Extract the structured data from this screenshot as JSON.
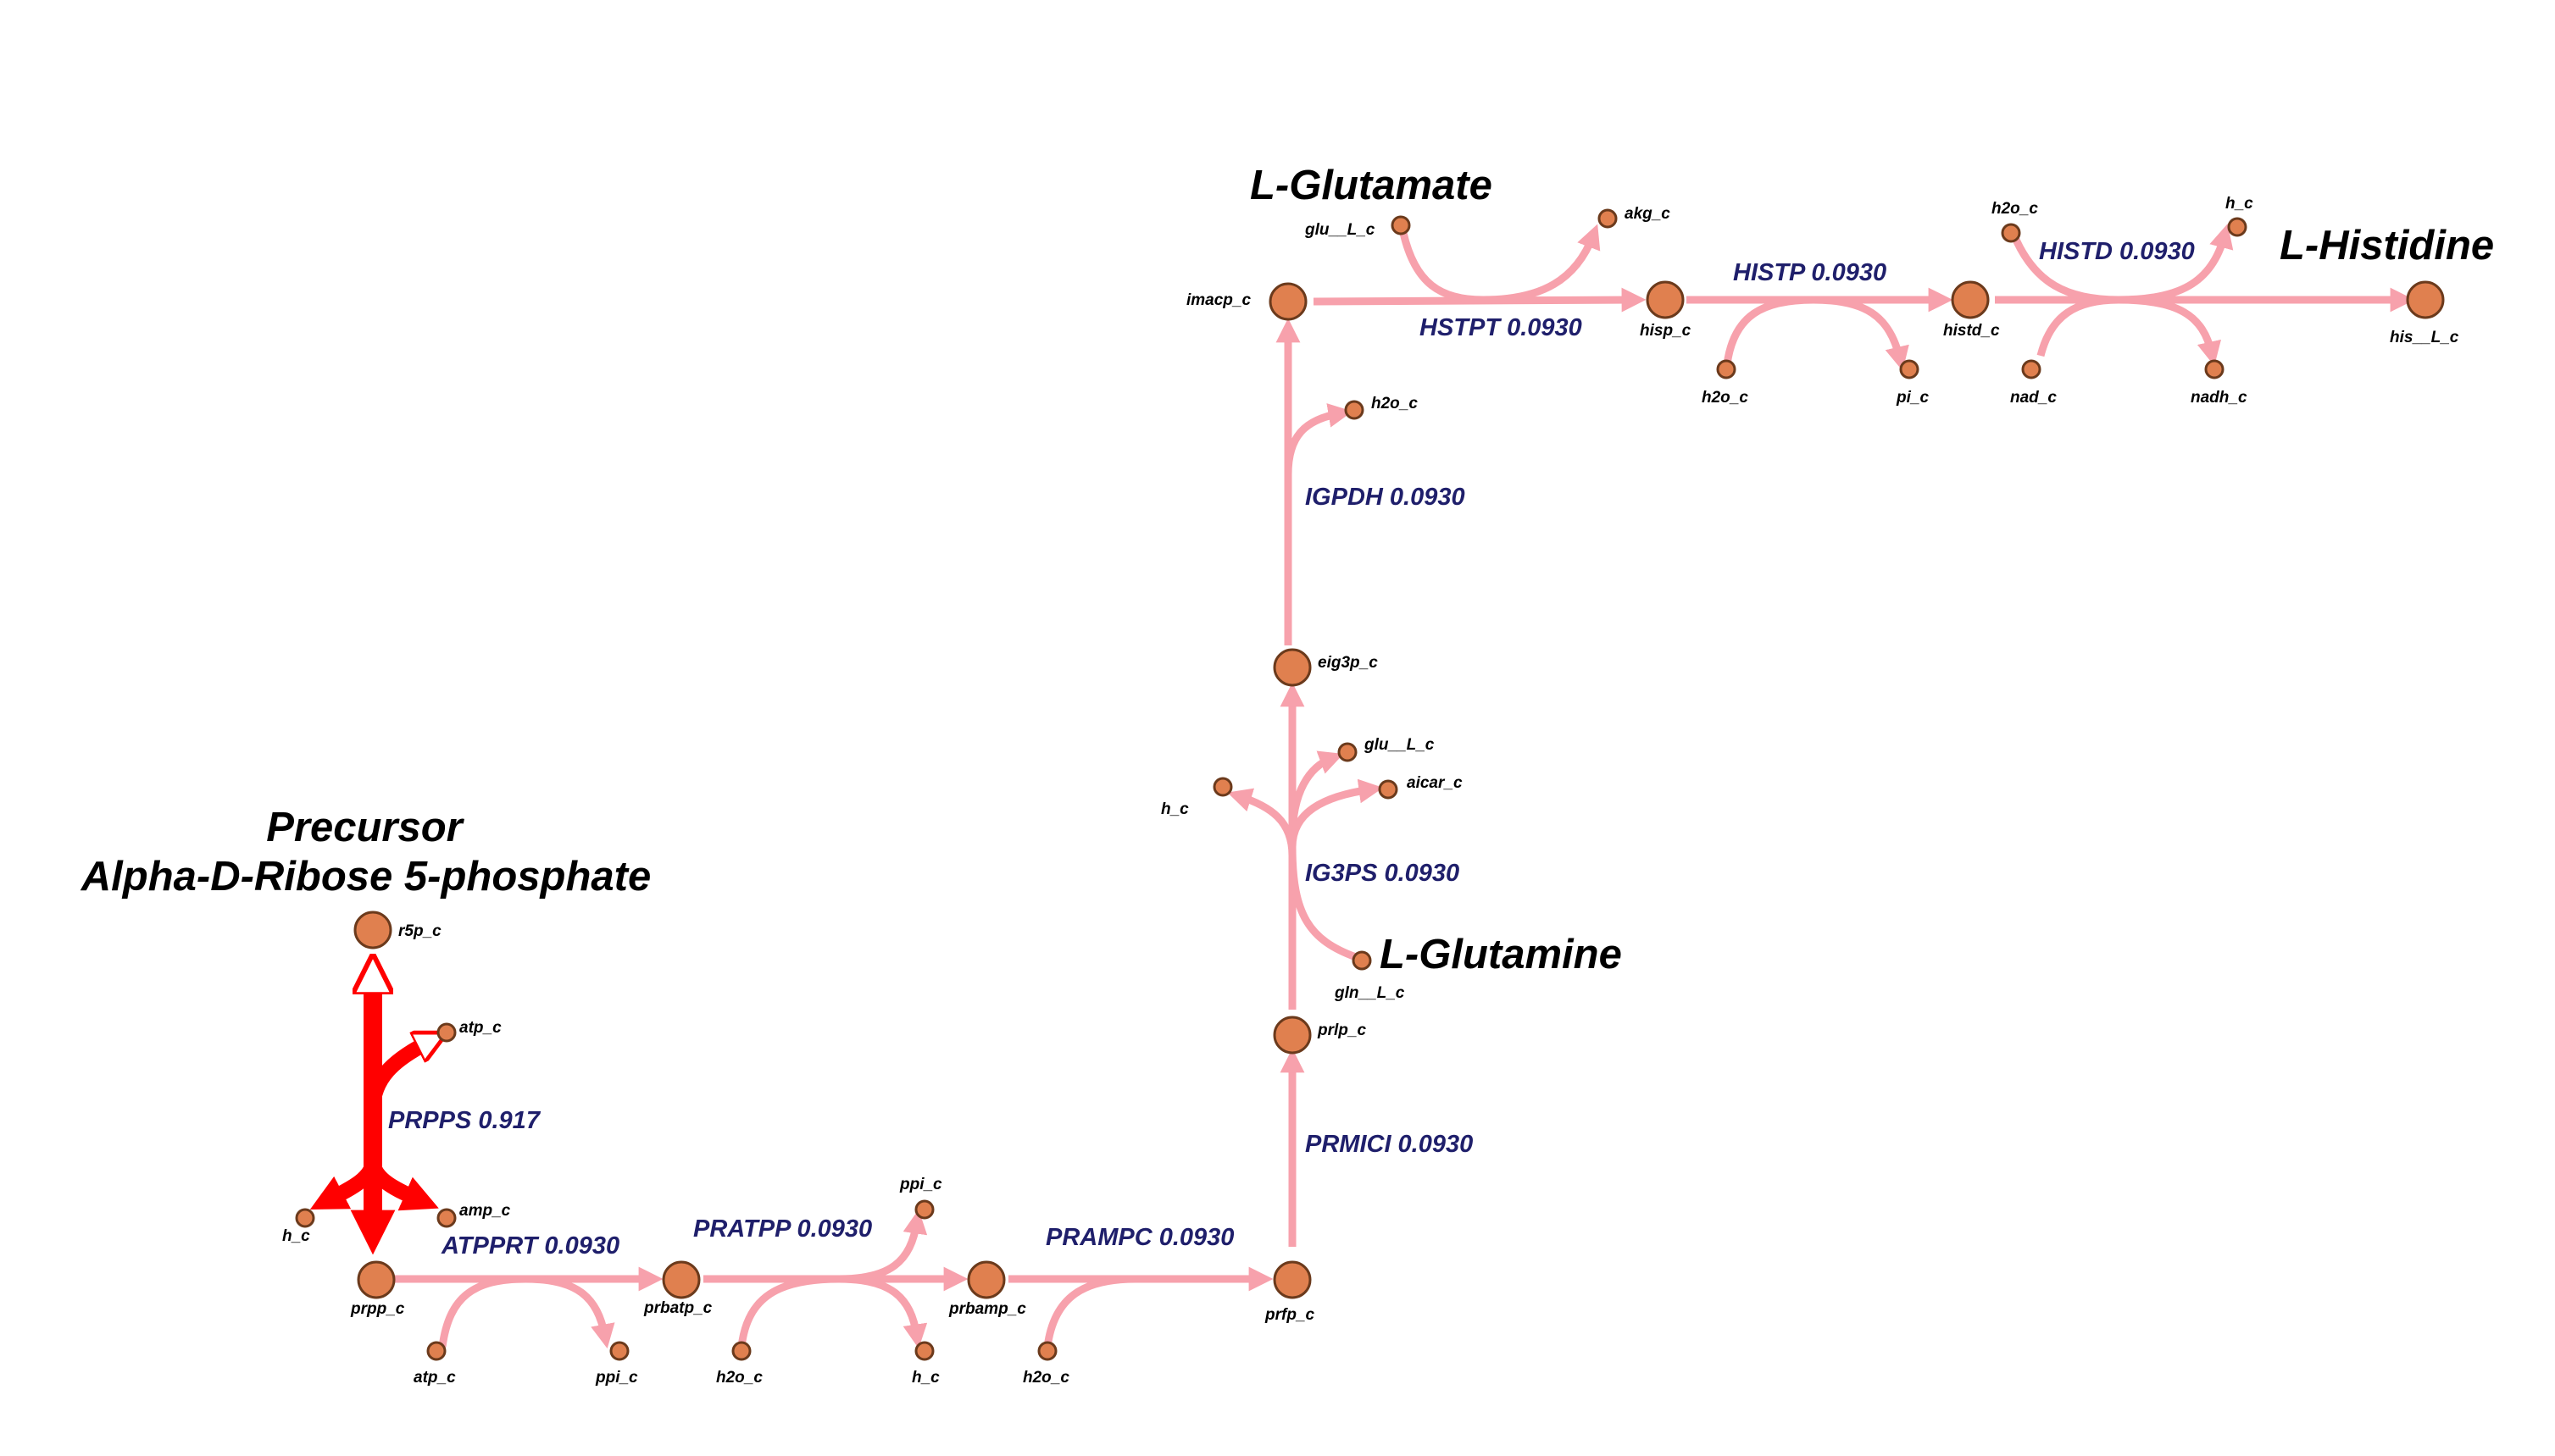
{
  "colors": {
    "low_flux": "#f7a1ac",
    "high_flux": "#ff0000",
    "node_fill": "#e0804f",
    "node_stroke": "#6b3a1c",
    "reaction_text": "#1f1f6b"
  },
  "pathway_labels": {
    "precursor_line1": "Precursor",
    "precursor_line2": "Alpha-D-Ribose 5-phosphate",
    "glutamate": "L-Glutamate",
    "glutamine": "L-Glutamine",
    "histidine": "L-Histidine"
  },
  "metabolites": {
    "r5p_c": "r5p_c",
    "atp_c_prpps": "atp_c",
    "amp_c": "amp_c",
    "h_c_prpps": "h_c",
    "prpp_c": "prpp_c",
    "atp_c_atpprt": "atp_c",
    "ppi_c_atpprt": "ppi_c",
    "prbatp_c": "prbatp_c",
    "ppi_c_pratpp": "ppi_c",
    "h2o_c_pratpp": "h2o_c",
    "h_c_pratpp": "h_c",
    "prbamp_c": "prbamp_c",
    "h2o_c_prampc": "h2o_c",
    "prfp_c": "prfp_c",
    "prlp_c": "prlp_c",
    "gln__L_c": "gln__L_c",
    "h_c_ig3ps": "h_c",
    "glu__L_c_ig3ps": "glu__L_c",
    "aicar_c": "aicar_c",
    "eig3p_c": "eig3p_c",
    "h2o_c_igpdh": "h2o_c",
    "imacp_c": "imacp_c",
    "glu__L_c_hstpt": "glu__L_c",
    "akg_c": "akg_c",
    "hisp_c": "hisp_c",
    "h2o_c_histp": "h2o_c",
    "pi_c": "pi_c",
    "histd_c": "histd_c",
    "h2o_c_histd": "h2o_c",
    "h_c_histd": "h_c",
    "nad_c": "nad_c",
    "nadh_c": "nadh_c",
    "his__L_c": "his__L_c"
  },
  "reactions": {
    "PRPPS": "PRPPS 0.917",
    "ATPPRT": "ATPPRT 0.0930",
    "PRATPP": "PRATPP 0.0930",
    "PRAMPC": "PRAMPC 0.0930",
    "PRMICI": "PRMICI 0.0930",
    "IG3PS": "IG3PS 0.0930",
    "IGPDH": "IGPDH 0.0930",
    "HSTPT": "HSTPT 0.0930",
    "HISTP": "HISTP 0.0930",
    "HISTD": "HISTD 0.0930"
  },
  "fluxes": {
    "PRPPS": 0.917,
    "ATPPRT": 0.093,
    "PRATPP": 0.093,
    "PRAMPC": 0.093,
    "PRMICI": 0.093,
    "IG3PS": 0.093,
    "IGPDH": 0.093,
    "HSTPT": 0.093,
    "HISTP": 0.093,
    "HISTD": 0.093
  }
}
